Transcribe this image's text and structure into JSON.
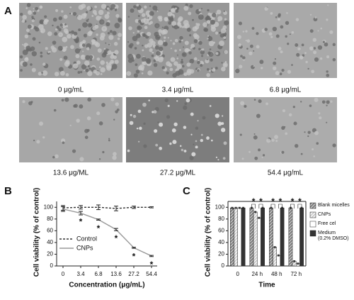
{
  "figure": {
    "panel_labels": [
      "A",
      "B",
      "C"
    ],
    "images": [
      {
        "caption": "0 μg/mL"
      },
      {
        "caption": "3.4 μg/mL"
      },
      {
        "caption": "6.8 μg/mL"
      },
      {
        "caption": "13.6 μg/ML"
      },
      {
        "caption": "27.2 μg/ML"
      },
      {
        "caption": "54.4 μg/mL"
      }
    ]
  },
  "chart_data": [
    {
      "type": "line",
      "categories": [
        "0",
        "3.4",
        "6.8",
        "13.6",
        "27.2",
        "54.4"
      ],
      "xlabel": "Concentration (μg/mL)",
      "ylabel": "Cell viability (% of control)",
      "ylim": [
        0,
        110
      ],
      "yticks": [
        0,
        20,
        40,
        60,
        80,
        100
      ],
      "legend": "left",
      "series": [
        {
          "name": "Control",
          "color": "#333333",
          "line_style": "dashed",
          "values": [
            99,
            100,
            100,
            98,
            100,
            100
          ],
          "errors": [
            4,
            3,
            4,
            4,
            2,
            1
          ]
        },
        {
          "name": "CNPs",
          "color": "#999999",
          "line_style": "solid",
          "values": [
            97,
            90,
            79,
            62,
            31,
            17
          ],
          "errors": [
            4,
            3,
            1,
            2,
            1,
            1
          ]
        }
      ],
      "annotations": [
        {
          "text": "*",
          "category": "3.4",
          "series": "CNPs"
        },
        {
          "text": "*",
          "category": "6.8",
          "series": "CNPs"
        },
        {
          "text": "*",
          "category": "13.6",
          "series": "CNPs"
        },
        {
          "text": "*",
          "category": "27.2",
          "series": "CNPs"
        },
        {
          "text": "*",
          "category": "54.4",
          "series": "CNPs"
        }
      ]
    },
    {
      "type": "bar",
      "categories": [
        "0",
        "24 h",
        "48 h",
        "72 h"
      ],
      "xlabel": "Time",
      "ylabel": "Cell viability (% of control)",
      "ylim": [
        0,
        110
      ],
      "yticks": [
        0,
        20,
        40,
        60,
        80,
        100
      ],
      "legend": "right",
      "series": [
        {
          "name": "Blank micelles",
          "color": "#555555",
          "hatch": "dense",
          "values": [
            99,
            99,
            99,
            99
          ],
          "errors": [
            1,
            1,
            1,
            1
          ]
        },
        {
          "name": "CNPs",
          "color": "#888888",
          "hatch": "sparse",
          "values": [
            99,
            92,
            32,
            8
          ],
          "errors": [
            1,
            1,
            1,
            1
          ]
        },
        {
          "name": "Free cel",
          "color": "#ffffff",
          "hatch": "none",
          "values": [
            99,
            82,
            18,
            4
          ],
          "errors": [
            1,
            1,
            1,
            1
          ]
        },
        {
          "name": "Medium\n(0.2% DMSO)",
          "color": "#333333",
          "hatch": "none",
          "values": [
            99,
            99,
            99,
            99
          ],
          "errors": [
            1,
            1,
            1,
            1
          ]
        }
      ],
      "annotations": [
        {
          "text": "*",
          "category": "24 h"
        },
        {
          "text": "*",
          "category": "24 h"
        },
        {
          "text": "*",
          "category": "48 h"
        },
        {
          "text": "*",
          "category": "48 h"
        },
        {
          "text": "*",
          "category": "72 h"
        },
        {
          "text": "*",
          "category": "72 h"
        }
      ]
    }
  ]
}
